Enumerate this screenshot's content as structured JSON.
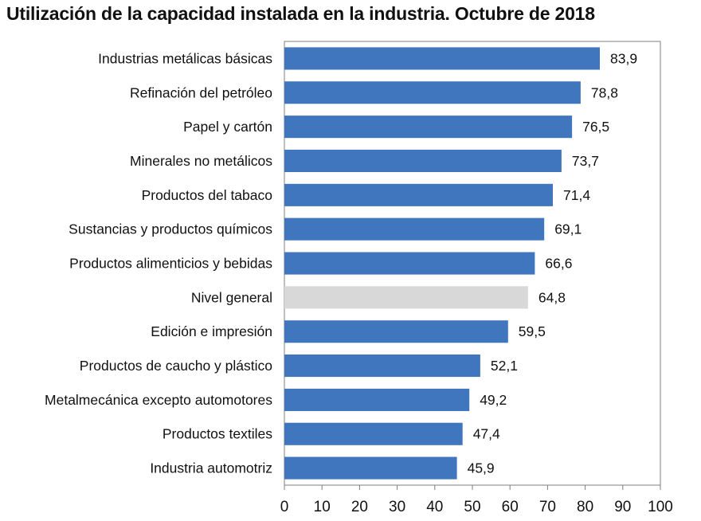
{
  "chart_data": {
    "type": "bar",
    "orientation": "horizontal",
    "title": "Utilización de la capacidad instalada en la industria. Octubre de 2018",
    "xlabel": "",
    "ylabel": "",
    "xlim": [
      0,
      100
    ],
    "ticks": [
      0,
      10,
      20,
      30,
      40,
      50,
      60,
      70,
      80,
      90,
      100
    ],
    "grid": false,
    "categories": [
      "Industrias metálicas básicas",
      "Refinación del petróleo",
      "Papel y cartón",
      "Minerales no metálicos",
      "Productos del tabaco",
      "Sustancias y productos químicos",
      "Productos alimenticios y bebidas",
      "Nivel general",
      "Edición e impresión",
      "Productos de caucho y plástico",
      "Metalmecánica excepto automotores",
      "Productos textiles",
      "Industria automotriz"
    ],
    "values": [
      83.9,
      78.8,
      76.5,
      73.7,
      71.4,
      69.1,
      66.6,
      64.8,
      59.5,
      52.1,
      49.2,
      47.4,
      45.9
    ],
    "value_labels": [
      "83,9",
      "78,8",
      "76,5",
      "73,7",
      "71,4",
      "69,1",
      "66,6",
      "64,8",
      "59,5",
      "52,1",
      "49,2",
      "47,4",
      "45,9"
    ],
    "highlight_category": "Nivel general",
    "colors": {
      "bar": "#3f76bd",
      "highlight": "#d8d8d8",
      "axis": "#7f7f7f",
      "text": "#111111"
    }
  }
}
